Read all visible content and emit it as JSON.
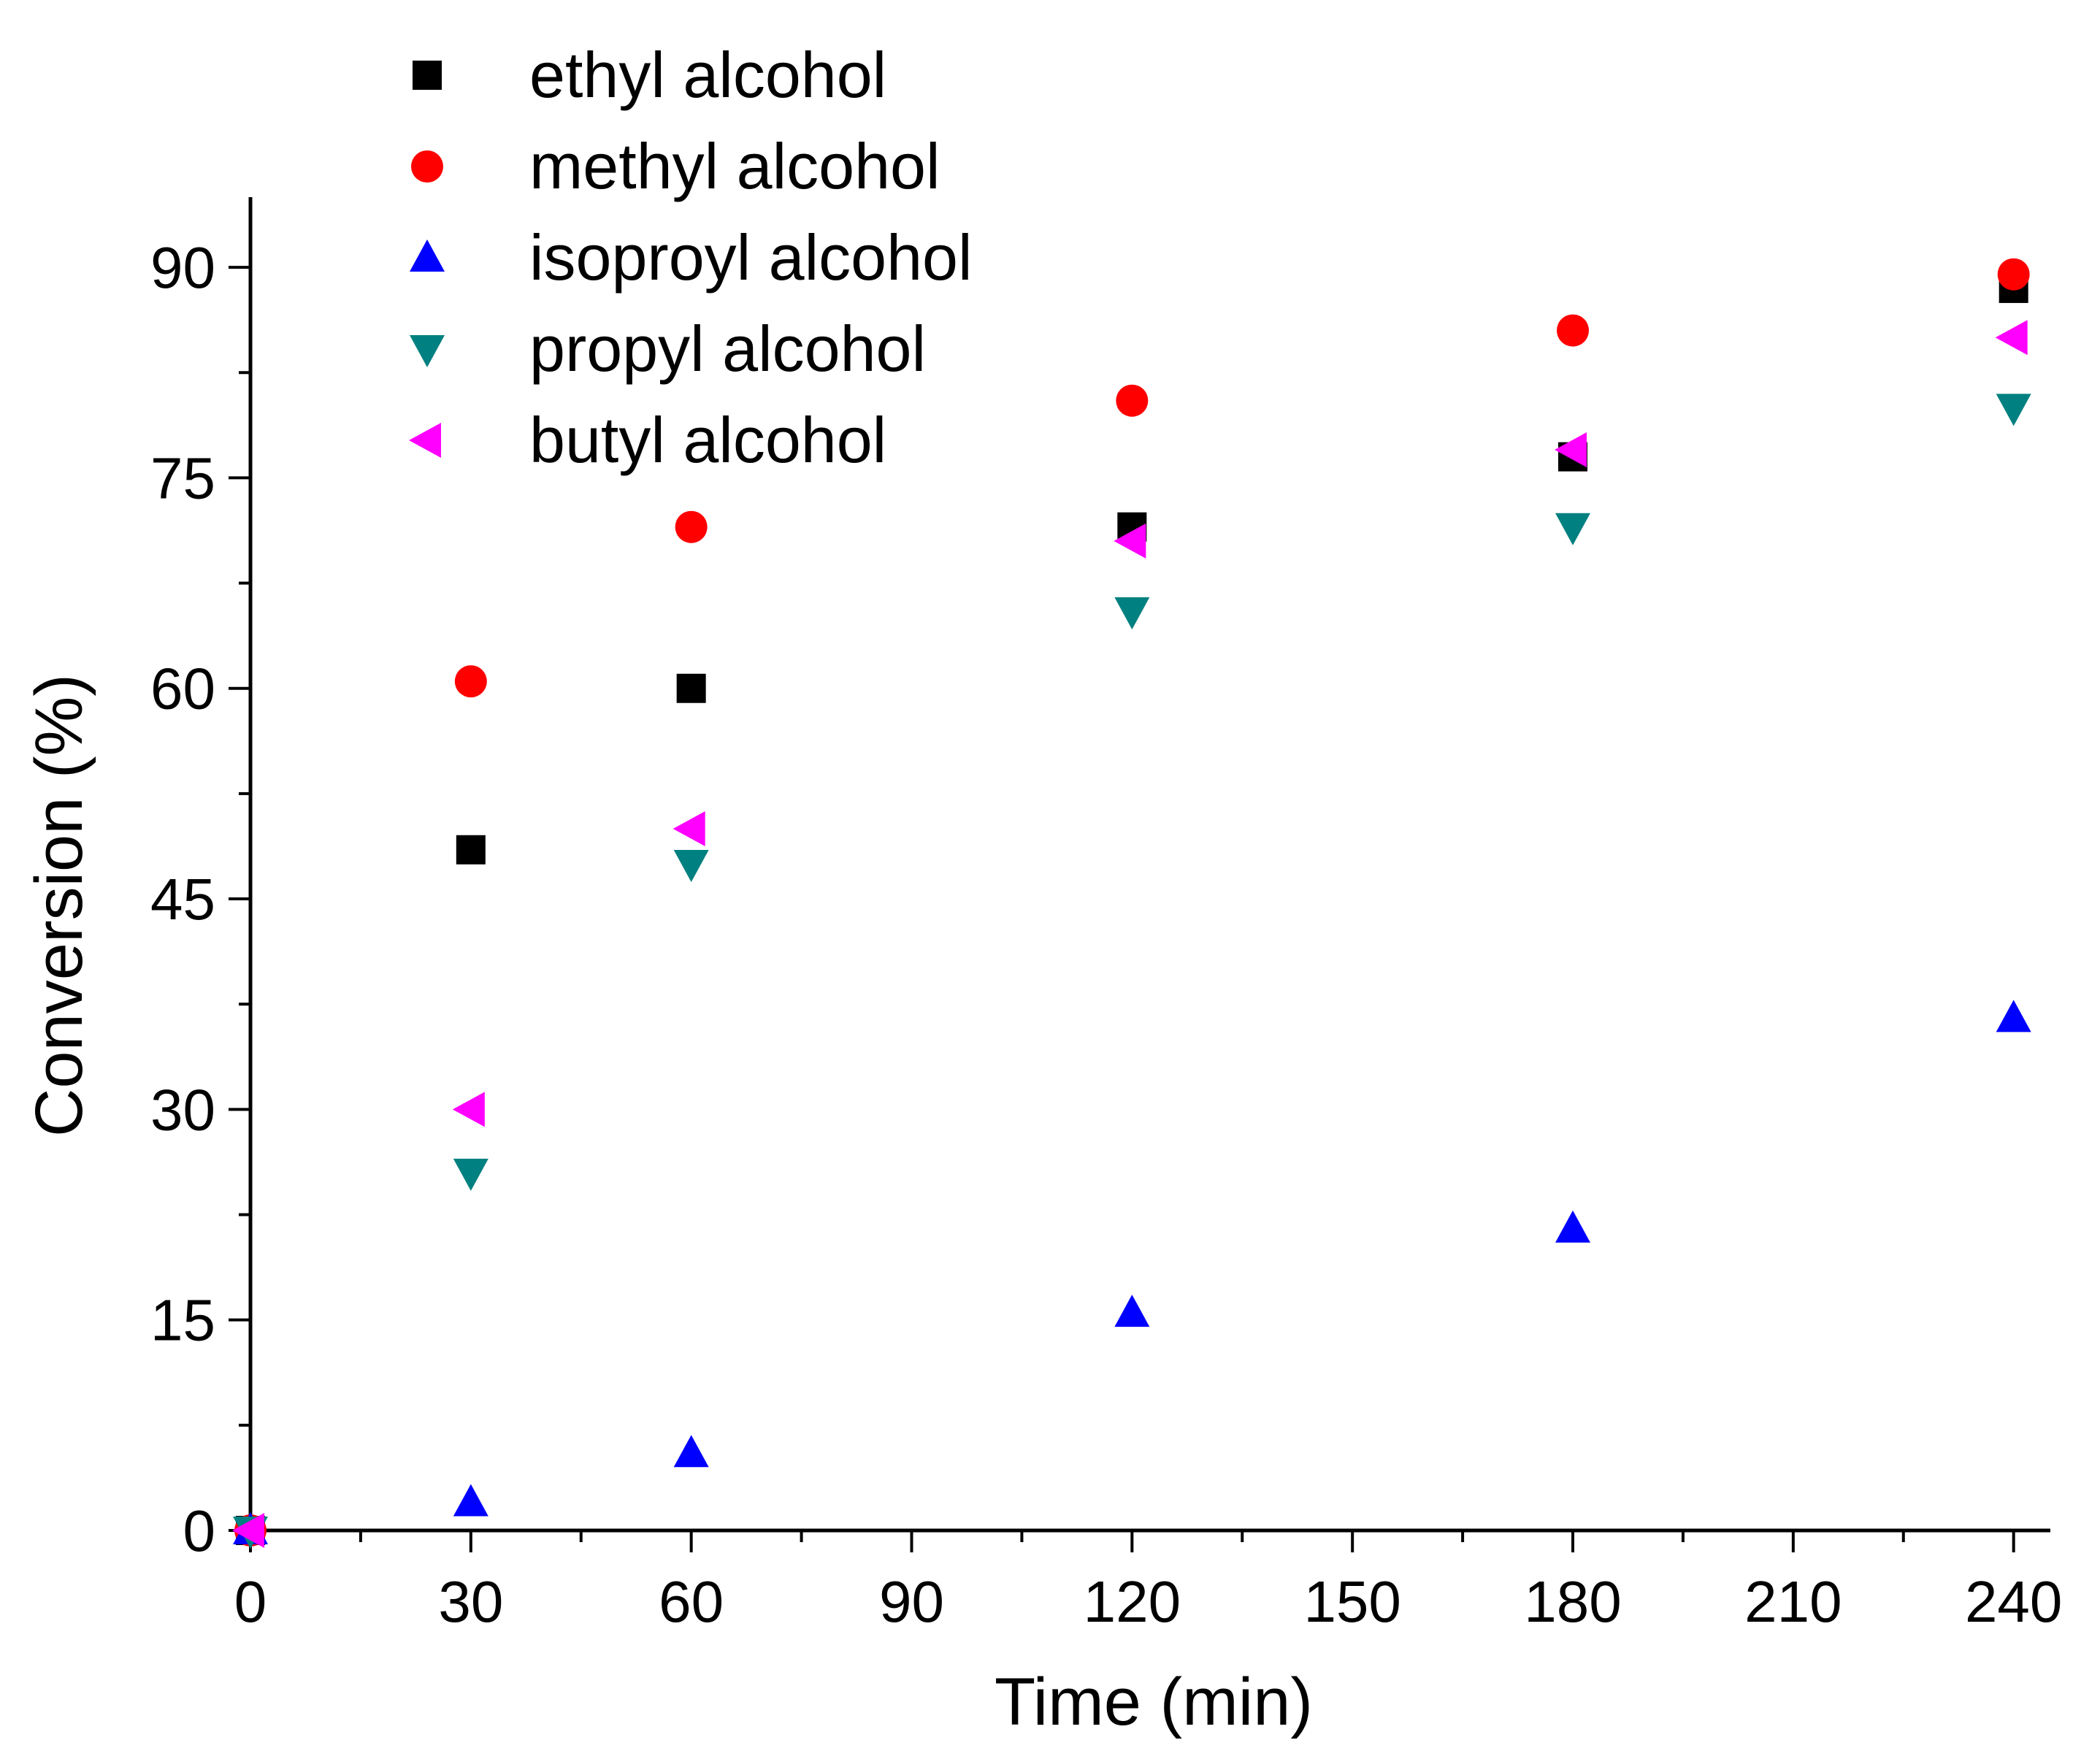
{
  "chart_data": {
    "type": "scatter",
    "xlabel": "Time (min)",
    "ylabel": "Conversion (%)",
    "xlim": [
      0,
      245
    ],
    "ylim": [
      0,
      95
    ],
    "xticks": [
      0,
      30,
      60,
      90,
      120,
      150,
      180,
      210,
      240
    ],
    "yticks": [
      0,
      15,
      30,
      45,
      60,
      75,
      90
    ],
    "legend_position": "top-left",
    "series": [
      {
        "name": "ethyl alcohol",
        "marker": "square",
        "color": "#000000",
        "x": [
          0,
          30,
          60,
          120,
          180,
          240
        ],
        "y": [
          0,
          48.5,
          60,
          71.5,
          76.5,
          88.5
        ]
      },
      {
        "name": "methyl alcohol",
        "marker": "circle",
        "color": "#ff0000",
        "x": [
          0,
          30,
          60,
          120,
          180,
          240
        ],
        "y": [
          0,
          60.5,
          71.5,
          80.5,
          85.5,
          89.5
        ]
      },
      {
        "name": "isoproyl alcohol",
        "marker": "triangle-up",
        "color": "#0000ff",
        "x": [
          0,
          30,
          60,
          120,
          180,
          240
        ],
        "y": [
          0,
          2,
          5.5,
          15.5,
          21.5,
          36.5
        ]
      },
      {
        "name": "propyl alcohol",
        "marker": "triangle-down",
        "color": "#008080",
        "x": [
          0,
          30,
          60,
          120,
          180,
          240
        ],
        "y": [
          0,
          25.5,
          47.5,
          65.5,
          71.5,
          80
        ]
      },
      {
        "name": "butyl alcohol",
        "marker": "triangle-left",
        "color": "#ff00ff",
        "x": [
          0,
          30,
          60,
          120,
          180,
          240
        ],
        "y": [
          0,
          30,
          50,
          70.5,
          77,
          85
        ]
      }
    ]
  }
}
